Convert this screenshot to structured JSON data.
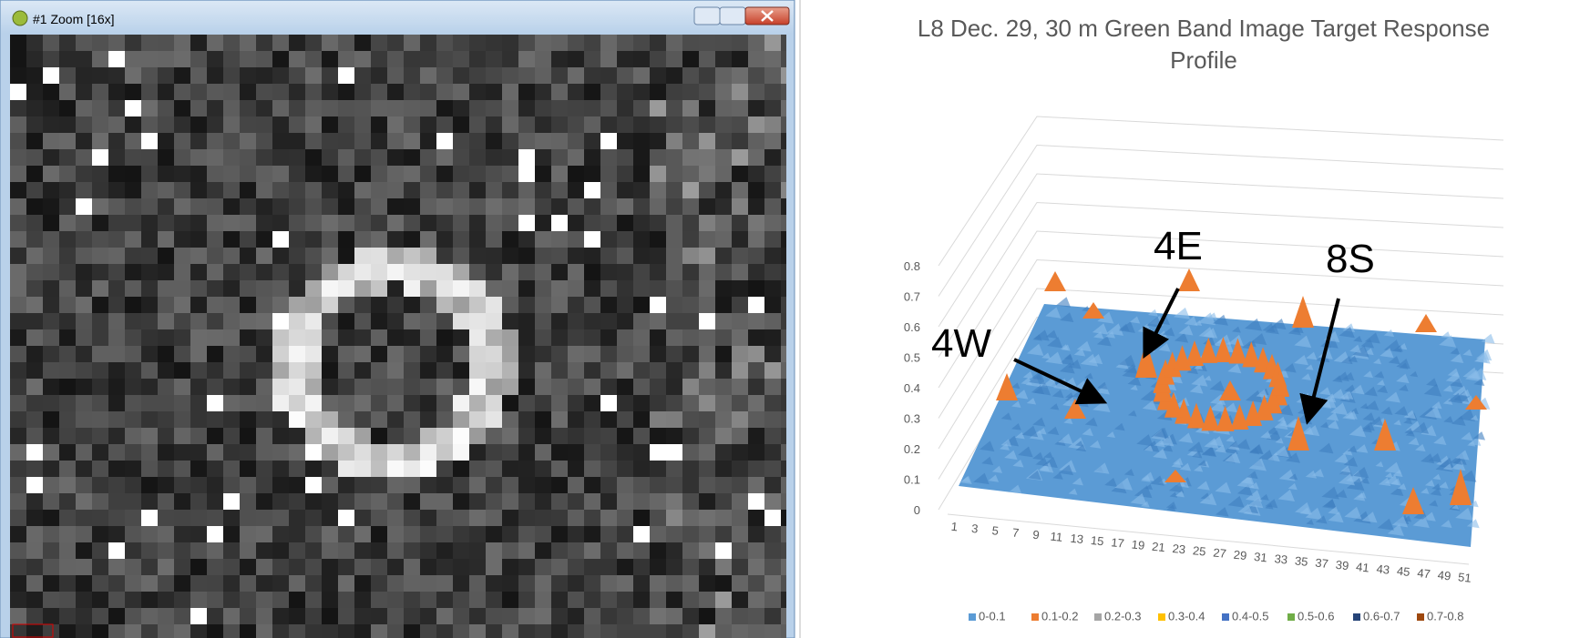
{
  "window": {
    "title": "#1 Zoom [16x]"
  },
  "chart": {
    "title": "L8 Dec. 29, 30 m Green Band Image Target Response Profile",
    "zticks": [
      0,
      0.1,
      0.2,
      0.3,
      0.4,
      0.5,
      0.6,
      0.7,
      0.8
    ],
    "xticks": [
      1,
      3,
      5,
      7,
      9,
      11,
      13,
      15,
      17,
      19,
      21,
      23,
      25,
      27,
      29,
      31,
      33,
      35,
      37,
      39,
      41,
      43,
      45,
      47,
      49,
      51
    ],
    "annotations": [
      "4W",
      "4E",
      "8S"
    ],
    "legend": [
      {
        "name": "0-0.1",
        "color": "#5b9bd5"
      },
      {
        "name": "0.1-0.2",
        "color": "#ed7d31"
      },
      {
        "name": "0.2-0.3",
        "color": "#a5a5a5"
      },
      {
        "name": "0.3-0.4",
        "color": "#ffc000"
      },
      {
        "name": "0.4-0.5",
        "color": "#4472c4"
      },
      {
        "name": "0.5-0.6",
        "color": "#70ad47"
      },
      {
        "name": "0.6-0.7",
        "color": "#264478"
      },
      {
        "name": "0.7-0.8",
        "color": "#9e480e"
      }
    ]
  }
}
